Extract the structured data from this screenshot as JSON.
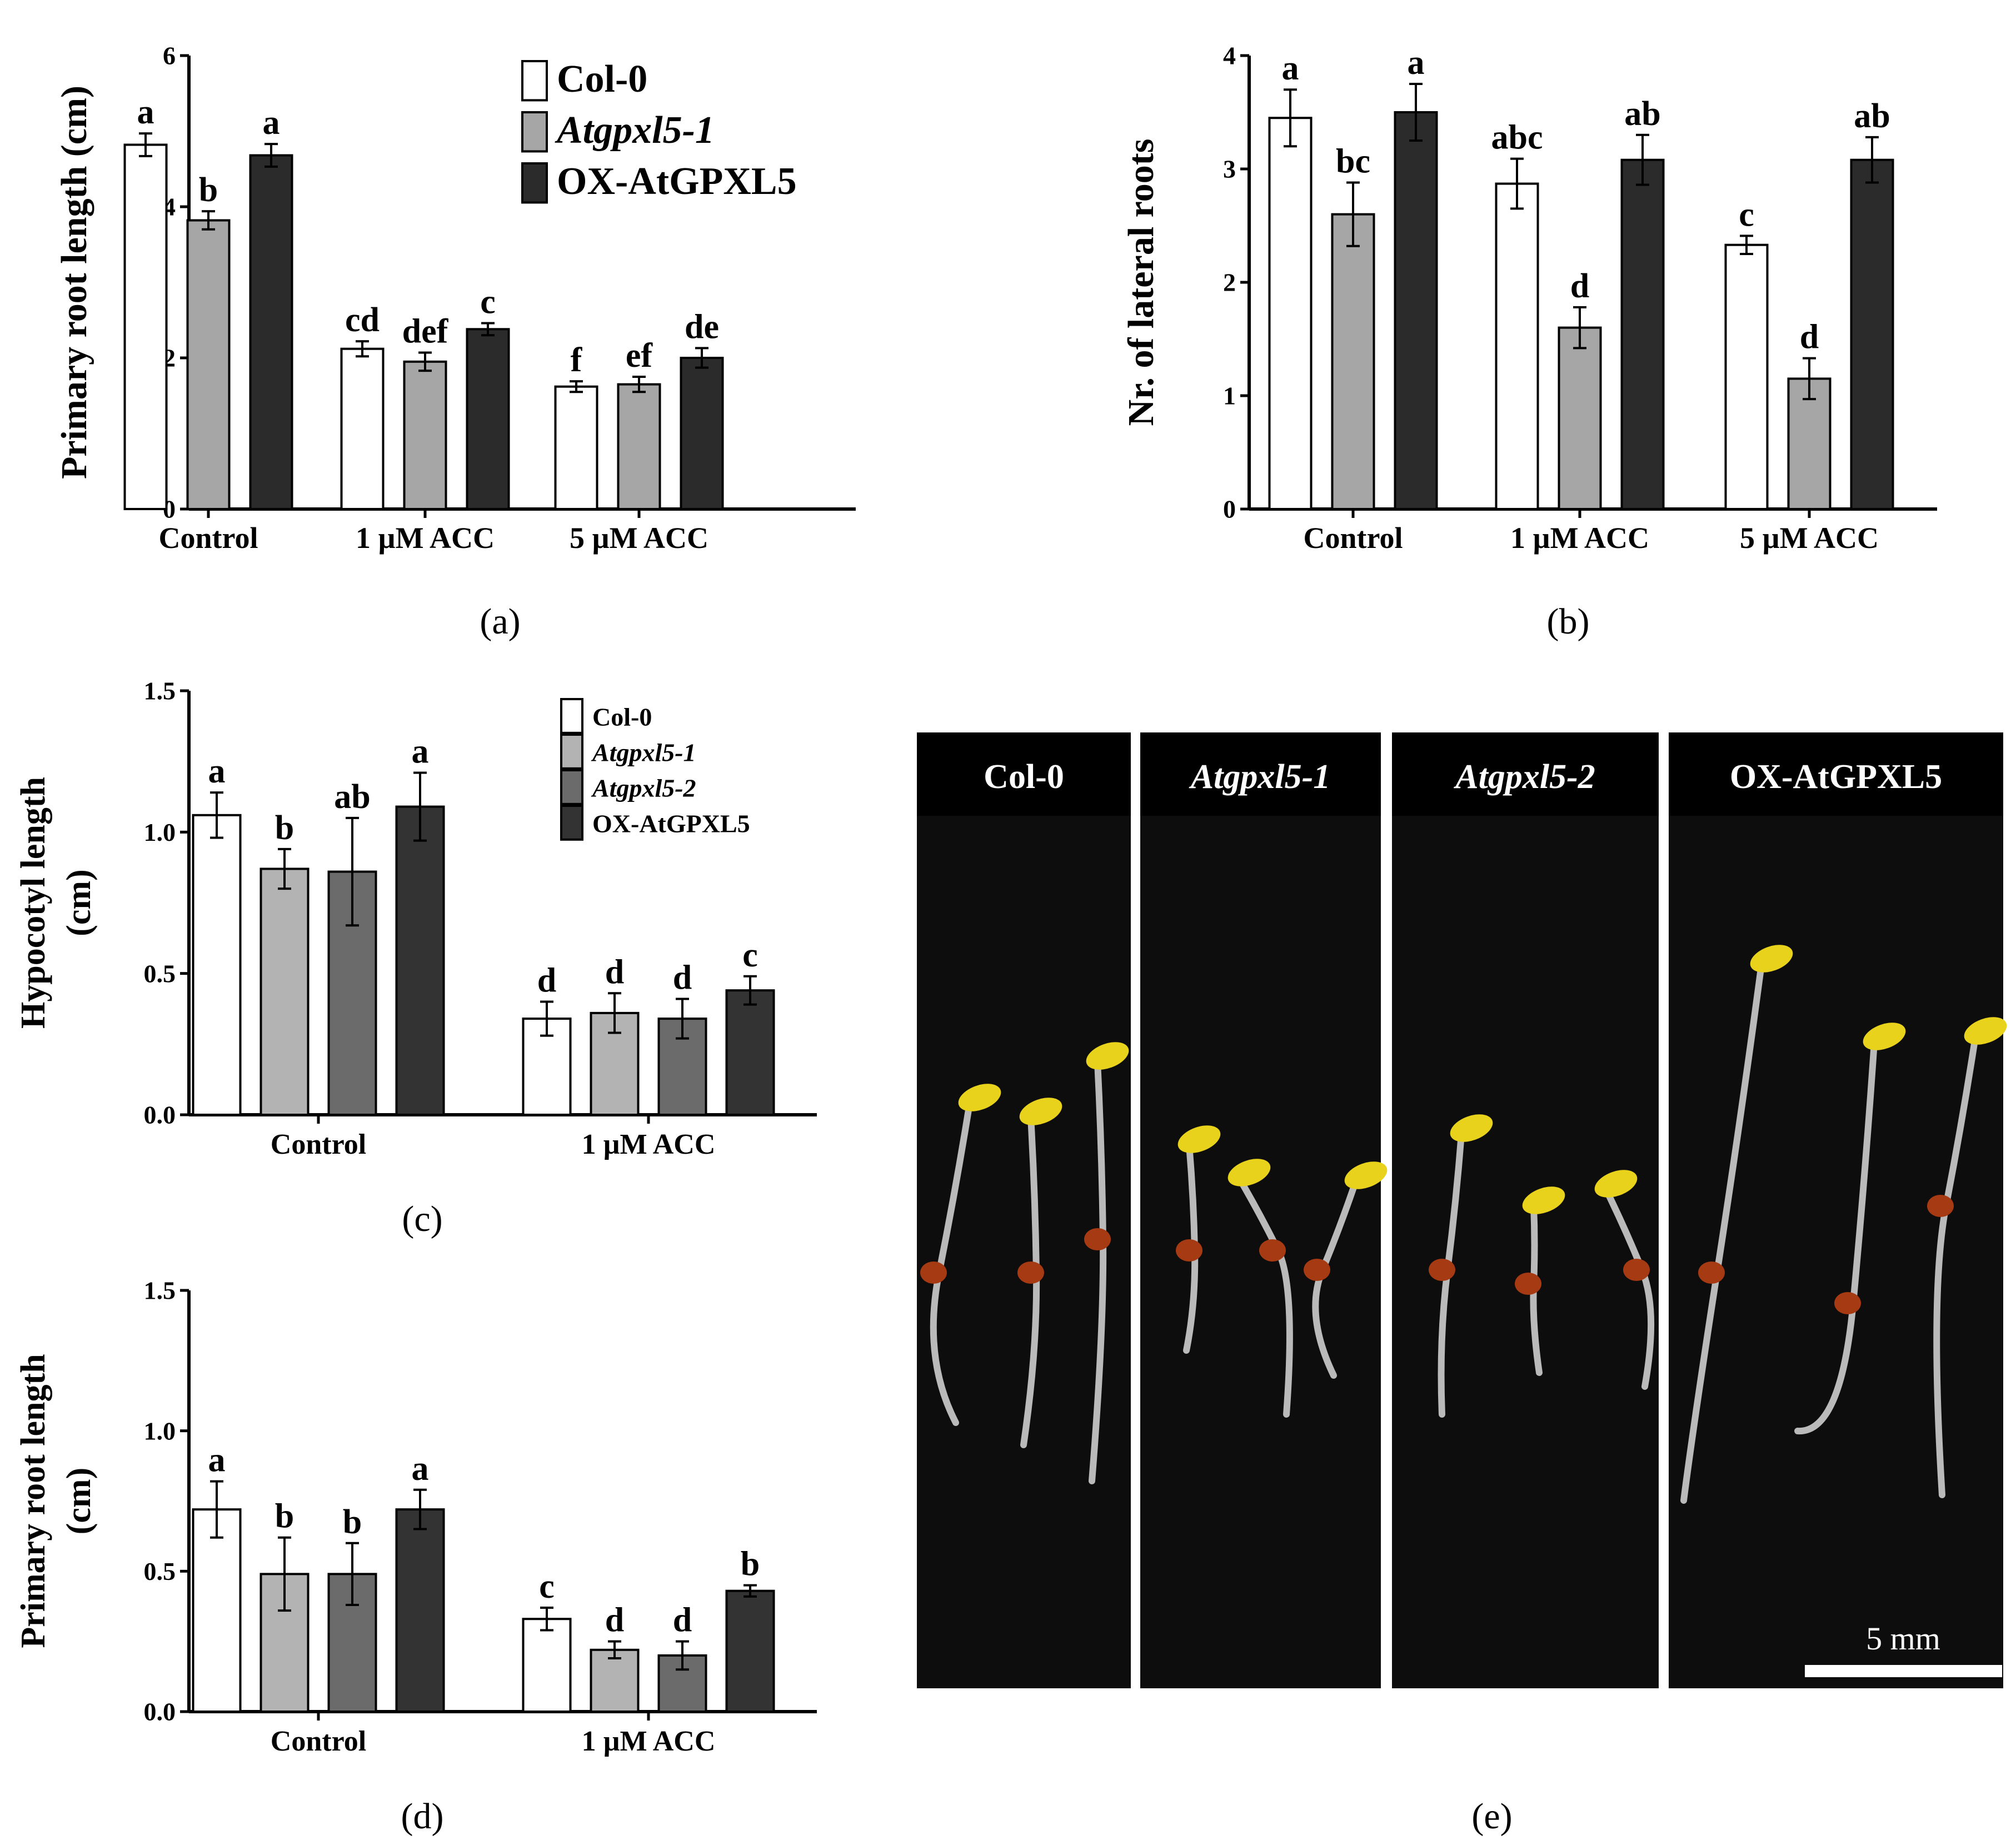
{
  "chart_data": [
    {
      "panel": "(a)",
      "type": "bar",
      "ylabel": "Primary root length (cm)",
      "ylim": [
        0,
        6
      ],
      "yticks": [
        0,
        2,
        4,
        6
      ],
      "categories": [
        "Control",
        "1 µM ACC",
        "5 µM ACC"
      ],
      "legend": "top-right",
      "series": [
        {
          "name": "Col-0",
          "color": "#ffffff",
          "italic": false,
          "values": [
            4.82,
            2.12,
            1.62
          ],
          "errors": [
            0.15,
            0.1,
            0.07
          ],
          "letters": [
            "a",
            "cd",
            "f"
          ]
        },
        {
          "name": "Atgpxl5-1",
          "color": "#a6a6a6",
          "italic": true,
          "values": [
            3.82,
            1.95,
            1.65
          ],
          "errors": [
            0.12,
            0.12,
            0.1
          ],
          "letters": [
            "b",
            "def",
            "ef"
          ]
        },
        {
          "name": "OX-AtGPXL5",
          "color": "#2b2b2b",
          "italic": false,
          "values": [
            4.68,
            2.38,
            2.0
          ],
          "errors": [
            0.15,
            0.08,
            0.13
          ],
          "letters": [
            "a",
            "c",
            "de"
          ]
        }
      ]
    },
    {
      "panel": "(b)",
      "type": "bar",
      "ylabel": "Nr. of lateral roots",
      "ylim": [
        0,
        4
      ],
      "yticks": [
        0,
        1,
        2,
        3,
        4
      ],
      "categories": [
        "Control",
        "1 µM ACC",
        "5 µM ACC"
      ],
      "series": [
        {
          "name": "Col-0",
          "color": "#ffffff",
          "values": [
            3.45,
            2.87,
            2.33
          ],
          "errors": [
            0.25,
            0.22,
            0.08
          ],
          "letters": [
            "a",
            "abc",
            "c"
          ]
        },
        {
          "name": "Atgpxl5-1",
          "color": "#a6a6a6",
          "values": [
            2.6,
            1.6,
            1.15
          ],
          "errors": [
            0.28,
            0.18,
            0.18
          ],
          "letters": [
            "bc",
            "d",
            "d"
          ]
        },
        {
          "name": "OX-AtGPXL5",
          "color": "#2b2b2b",
          "values": [
            3.5,
            3.08,
            3.08
          ],
          "errors": [
            0.25,
            0.22,
            0.2
          ],
          "letters": [
            "a",
            "ab",
            "ab"
          ]
        }
      ]
    },
    {
      "panel": "(c)",
      "type": "bar",
      "ylabel": [
        "Hypocotyl length",
        "(cm)"
      ],
      "ylim": [
        0,
        1.5
      ],
      "yticks": [
        "0.0",
        "0.5",
        "1.0",
        "1.5"
      ],
      "categories": [
        "Control",
        "1 µM ACC"
      ],
      "legend": "top-right",
      "series": [
        {
          "name": "Col-0",
          "color": "#ffffff",
          "italic": false,
          "values": [
            1.06,
            0.34
          ],
          "errors": [
            0.08,
            0.06
          ],
          "letters": [
            "a",
            "d"
          ]
        },
        {
          "name": "Atgpxl5-1",
          "color": "#b3b3b3",
          "italic": true,
          "values": [
            0.87,
            0.36
          ],
          "errors": [
            0.07,
            0.07
          ],
          "letters": [
            "b",
            "d"
          ]
        },
        {
          "name": "Atgpxl5-2",
          "color": "#6b6b6b",
          "italic": true,
          "values": [
            0.86,
            0.34
          ],
          "errors": [
            0.19,
            0.07
          ],
          "letters": [
            "ab",
            "d"
          ]
        },
        {
          "name": "OX-AtGPXL5",
          "color": "#333333",
          "italic": false,
          "values": [
            1.09,
            0.44
          ],
          "errors": [
            0.12,
            0.05
          ],
          "letters": [
            "a",
            "c"
          ]
        }
      ]
    },
    {
      "panel": "(d)",
      "type": "bar",
      "ylabel": [
        "Primary root length",
        "(cm)"
      ],
      "ylim": [
        0,
        1.5
      ],
      "yticks": [
        "0.0",
        "0.5",
        "1.0",
        "1.5"
      ],
      "categories": [
        "Control",
        "1 µM ACC"
      ],
      "series": [
        {
          "name": "Col-0",
          "color": "#ffffff",
          "values": [
            0.72,
            0.33
          ],
          "errors": [
            0.1,
            0.04
          ],
          "letters": [
            "a",
            "c"
          ]
        },
        {
          "name": "Atgpxl5-1",
          "color": "#b3b3b3",
          "values": [
            0.49,
            0.22
          ],
          "errors": [
            0.13,
            0.03
          ],
          "letters": [
            "b",
            "d"
          ]
        },
        {
          "name": "Atgpxl5-2",
          "color": "#6b6b6b",
          "values": [
            0.49,
            0.2
          ],
          "errors": [
            0.11,
            0.05
          ],
          "letters": [
            "b",
            "d"
          ]
        },
        {
          "name": "OX-AtGPXL5",
          "color": "#333333",
          "values": [
            0.72,
            0.43
          ],
          "errors": [
            0.07,
            0.02
          ],
          "letters": [
            "a",
            "b"
          ]
        }
      ]
    }
  ],
  "photo": {
    "panel": "(e)",
    "columns": [
      {
        "label": "Col-0",
        "italic": false
      },
      {
        "label": "Atgpxl5-1",
        "italic": true
      },
      {
        "label": "Atgpxl5-2",
        "italic": true
      },
      {
        "label": "OX-AtGPXL5",
        "italic": false
      }
    ],
    "scale_bar": "5 mm",
    "colors": {
      "background": "#0d0d0d",
      "cotyledon": "#e8d21c",
      "seed": "#a63a12",
      "stem": "#d9d9d9"
    }
  }
}
